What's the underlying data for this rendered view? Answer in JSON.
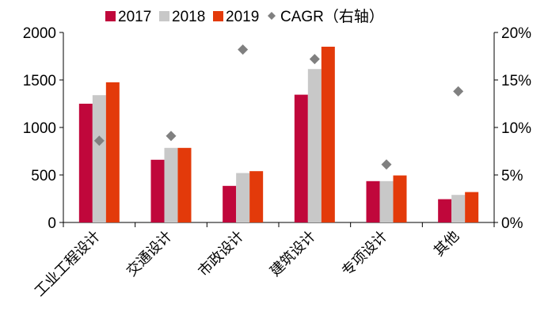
{
  "chart_data": {
    "type": "bar",
    "categories": [
      "工业工程设计",
      "交通设计",
      "市政设计",
      "建筑设计",
      "专项设计",
      "其他"
    ],
    "series": [
      {
        "name": "2017",
        "color": "#C0073B",
        "values": [
          1250,
          660,
          385,
          1345,
          435,
          245
        ]
      },
      {
        "name": "2018",
        "color": "#C8C8C8",
        "values": [
          1340,
          785,
          520,
          1615,
          435,
          290
        ]
      },
      {
        "name": "2019",
        "color": "#E33A0A",
        "values": [
          1475,
          785,
          540,
          1850,
          495,
          320
        ]
      }
    ],
    "cagr": {
      "name": "CAGR（右轴）",
      "color": "#808080",
      "values": [
        8.6,
        9.1,
        18.2,
        17.2,
        6.1,
        13.8
      ]
    },
    "ylim": [
      0,
      2000
    ],
    "yticks": [
      "0",
      "500",
      "1000",
      "1500",
      "2000"
    ],
    "y2lim": [
      0,
      20
    ],
    "y2ticks": [
      "0%",
      "5%",
      "10%",
      "15%",
      "20%"
    ],
    "legend_position": "top",
    "grid": false
  }
}
